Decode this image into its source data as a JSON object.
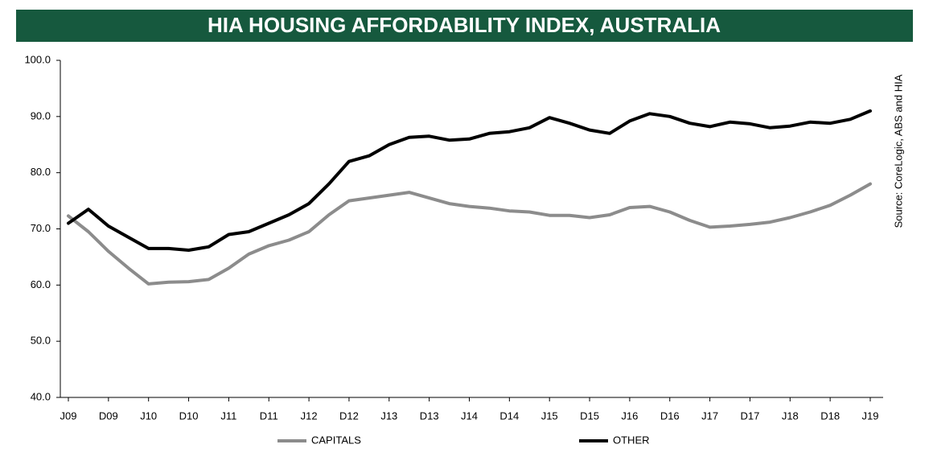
{
  "chart_data": {
    "type": "line",
    "title": "HIA HOUSING AFFORDABILITY INDEX, AUSTRALIA",
    "source": "Source: CoreLogic, ABS and HIA",
    "categories": [
      "J09",
      null,
      "D09",
      null,
      "J10",
      null,
      "D10",
      null,
      "J11",
      null,
      "D11",
      null,
      "J12",
      null,
      "D12",
      null,
      "J13",
      null,
      "D13",
      null,
      "J14",
      null,
      "D14",
      null,
      "J15",
      null,
      "D15",
      null,
      "J16",
      null,
      "D16",
      null,
      "J17",
      null,
      "D17",
      null,
      "J18",
      null,
      "D18",
      null,
      "J19"
    ],
    "series": [
      {
        "name": "CAPITALS",
        "color": "#8c8c8c",
        "values": [
          72.3,
          69.5,
          66,
          63,
          60.2,
          60.5,
          60.6,
          61,
          63,
          65.5,
          67,
          68,
          69.5,
          72.5,
          75,
          75.5,
          76,
          76.5,
          75.5,
          74.5,
          74,
          73.7,
          73.2,
          73,
          72.4,
          72.4,
          72,
          72.5,
          73.8,
          74,
          73,
          71.5,
          70.3,
          70.5,
          70.8,
          71.2,
          72,
          73,
          74.2,
          76,
          78
        ]
      },
      {
        "name": "OTHER",
        "color": "#000000",
        "values": [
          71,
          73.5,
          70.5,
          68.5,
          66.5,
          66.5,
          66.2,
          66.8,
          69,
          69.5,
          71,
          72.5,
          74.5,
          78,
          82,
          83,
          85,
          86.3,
          86.5,
          85.8,
          86,
          87,
          87.3,
          88,
          89.8,
          88.8,
          87.6,
          87,
          89.2,
          90.5,
          90,
          88.8,
          88.2,
          89,
          88.7,
          88,
          88.3,
          89,
          88.8,
          89.5,
          91
        ]
      }
    ],
    "ylim": [
      40,
      100
    ],
    "yticks": [
      {
        "value": 40,
        "label": "40.0"
      },
      {
        "value": 50,
        "label": "50.0"
      },
      {
        "value": 60,
        "label": "60.0"
      },
      {
        "value": 70,
        "label": "70.0"
      },
      {
        "value": 80,
        "label": "80.0"
      },
      {
        "value": 90,
        "label": "90.0"
      },
      {
        "value": 100,
        "label": "100.0"
      }
    ],
    "grid": false,
    "legend": "bottom",
    "title_background": "#16593e"
  }
}
